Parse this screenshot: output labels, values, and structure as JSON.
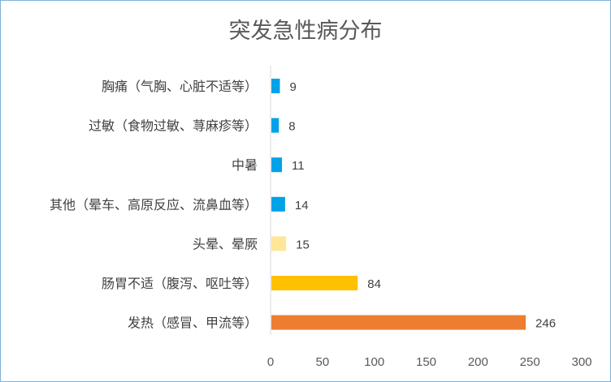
{
  "chart_data": {
    "type": "bar",
    "orientation": "horizontal",
    "title": "突发急性病分布",
    "categories": [
      "胸痛（气胸、心脏不适等）",
      "过敏（食物过敏、荨麻疹等）",
      "中暑",
      "其他（晕车、高原反应、流鼻血等）",
      "头晕、晕厥",
      "肠胃不适（腹泻、呕吐等）",
      "发热（感冒、甲流等）"
    ],
    "values": [
      9,
      8,
      11,
      14,
      15,
      84,
      246
    ],
    "bar_colors": [
      "#00A2E8",
      "#00A2E8",
      "#00A2E8",
      "#00A2E8",
      "#FFE699",
      "#FFC000",
      "#ED7D31"
    ],
    "xlim": [
      0,
      300
    ],
    "x_ticks": [
      0,
      50,
      100,
      150,
      200,
      250,
      300
    ],
    "grid": false,
    "legend": "none",
    "data_labels": true
  }
}
